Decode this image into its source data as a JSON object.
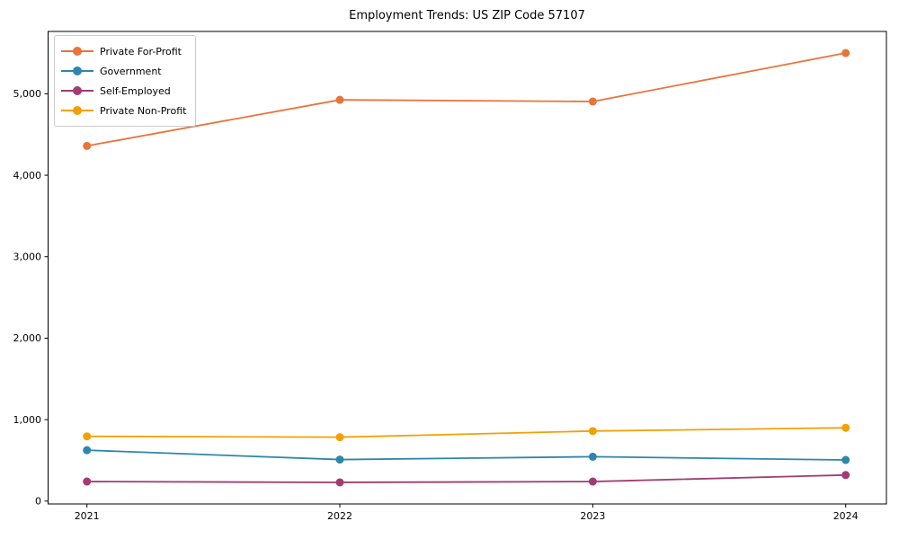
{
  "chart_data": {
    "type": "line",
    "title": "Employment Trends: US ZIP Code 57107",
    "xlabel": "",
    "ylabel": "",
    "x": [
      2021,
      2022,
      2023,
      2024
    ],
    "xtick_labels": [
      "2021",
      "2022",
      "2023",
      "2024"
    ],
    "yticks": [
      0,
      1000,
      2000,
      3000,
      4000,
      5000
    ],
    "ytick_labels": [
      "0",
      "1,000",
      "2,000",
      "3,000",
      "4,000",
      "5,000"
    ],
    "ylim": [
      -35,
      5765
    ],
    "grid": false,
    "legend_position": "upper-left",
    "series": [
      {
        "name": "Private For-Profit",
        "color": "#E8743B",
        "values": [
          4360,
          4925,
          4905,
          5500
        ]
      },
      {
        "name": "Government",
        "color": "#2E86AB",
        "values": [
          625,
          510,
          545,
          505
        ]
      },
      {
        "name": "Self-Employed",
        "color": "#A23B72",
        "values": [
          240,
          230,
          240,
          320
        ]
      },
      {
        "name": "Private Non-Profit",
        "color": "#F2A104",
        "values": [
          795,
          785,
          860,
          900
        ]
      }
    ]
  }
}
